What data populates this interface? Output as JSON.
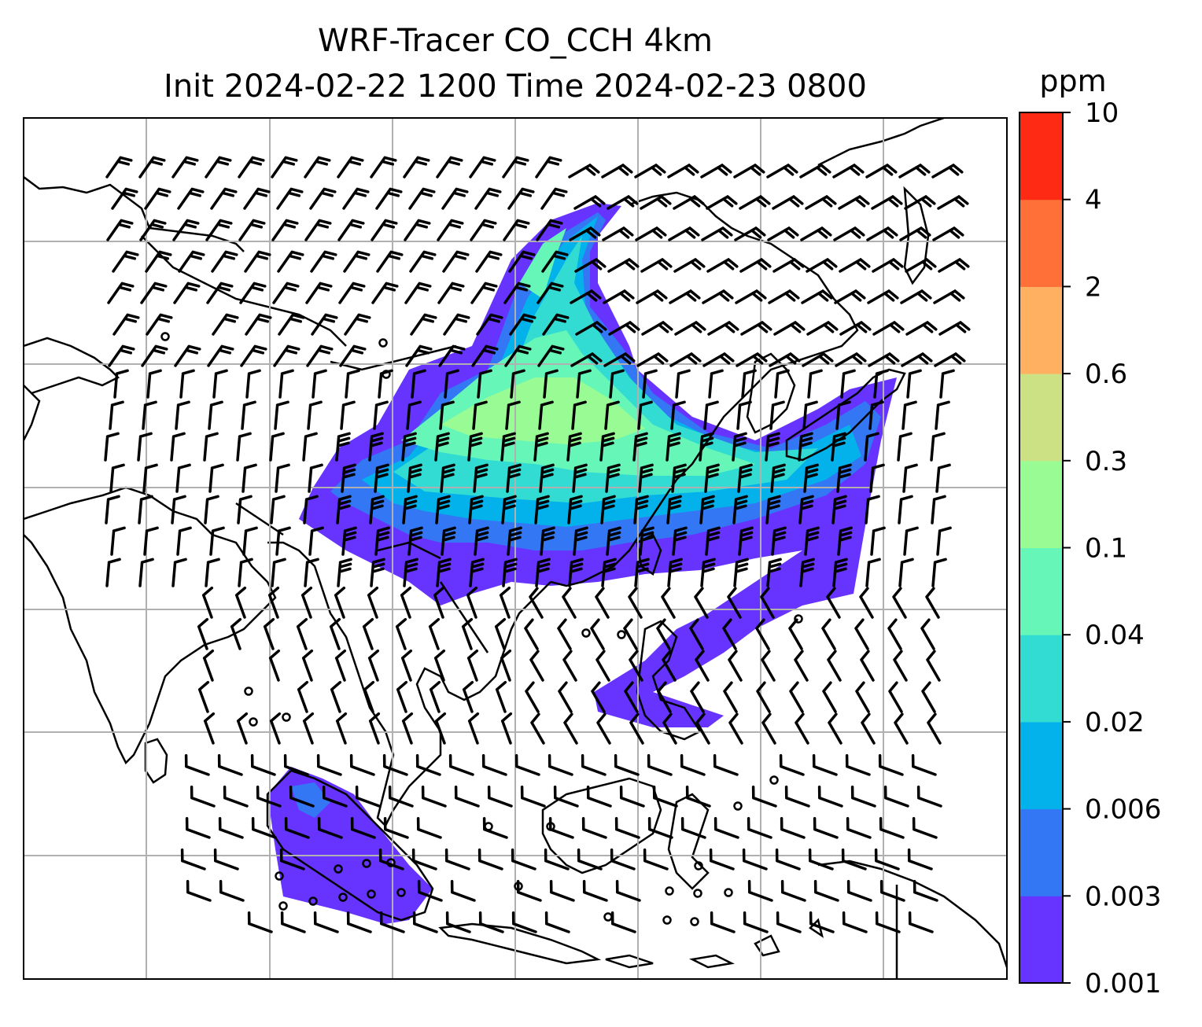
{
  "title": {
    "line1": "WRF-Tracer CO_CCH 4km",
    "line2": "Init 2024-02-22 1200 Time 2024-02-23 0800"
  },
  "colorbar": {
    "units": "ppm",
    "levels": [
      "0.001",
      "0.003",
      "0.006",
      "0.02",
      "0.04",
      "0.1",
      "0.3",
      "0.6",
      "2",
      "4",
      "10"
    ],
    "colors": [
      "#6633ff",
      "#3377f5",
      "#03b2ea",
      "#33dcd2",
      "#66f7b8",
      "#99fb94",
      "#cce184",
      "#ffb060",
      "#ff7038",
      "#ff2a14"
    ]
  },
  "map": {
    "field": "CO_CCH",
    "coastline_color": "#000000",
    "gridline_color": "#b0b0b0"
  }
}
